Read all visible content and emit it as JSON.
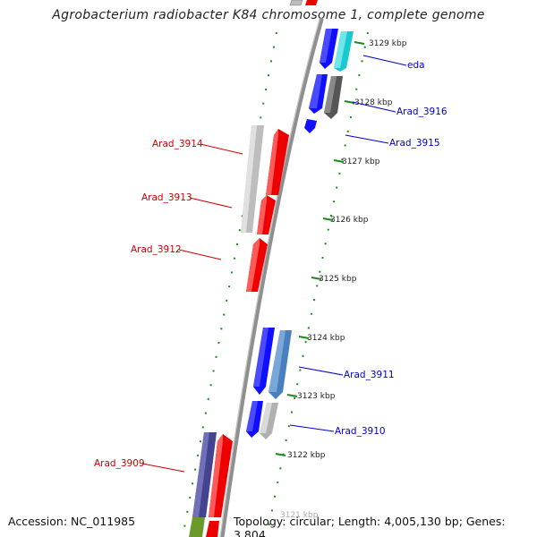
{
  "title": "Agrobacterium radiobacter K84 chromosome 1, complete genome",
  "footer": {
    "accession": "Accession: NC_011985",
    "topology": "Topology: circular; Length: 4,005,130 bp; Genes: 3,804"
  },
  "colors": {
    "backbone": "#8f8f8f",
    "tick": "#1a8a1a",
    "red_label": "#cc0000",
    "blue_label": "#0000cc",
    "label_dark": "#222222"
  },
  "kbp_labels": [
    "3129 kbp",
    "3128 kbp",
    "3127 kbp",
    "3126 kbp",
    "3125 kbp",
    "3124 kbp",
    "3123 kbp",
    "3122 kbp",
    "3121 kbp"
  ],
  "left_genes": [
    {
      "name": "Arad_3914",
      "color": "red"
    },
    {
      "name": "Arad_3913",
      "color": "red"
    },
    {
      "name": "Arad_3912",
      "color": "red"
    },
    {
      "name": "Arad_3909",
      "color": "red"
    }
  ],
  "right_genes": [
    {
      "name": "eda",
      "color": "blue"
    },
    {
      "name": "Arad_3916",
      "color": "blue"
    },
    {
      "name": "Arad_3915",
      "color": "blue"
    },
    {
      "name": "Arad_3911",
      "color": "blue"
    },
    {
      "name": "Arad_3910",
      "color": "blue"
    }
  ]
}
